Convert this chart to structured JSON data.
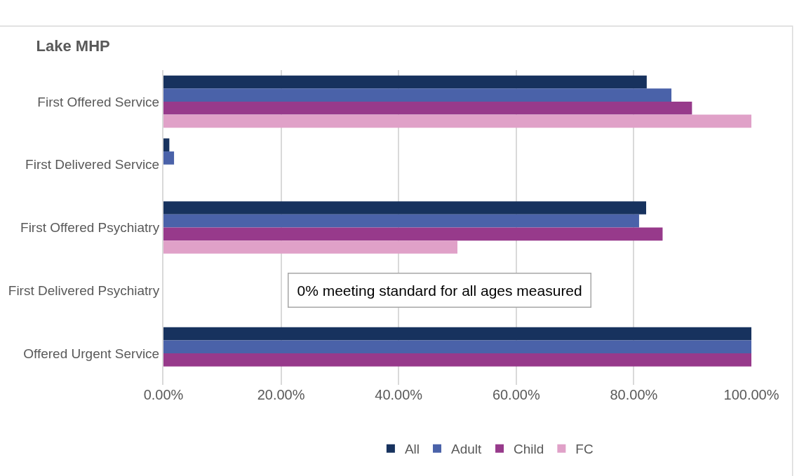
{
  "chart_data": {
    "type": "bar",
    "orientation": "horizontal",
    "title": "Lake MHP",
    "categories": [
      "First Offered Service",
      "First Delivered Service",
      "First Offered Psychiatry",
      "First Delivered Psychiatry",
      "Offered Urgent Service"
    ],
    "series": [
      {
        "name": "All",
        "color": "#17325e",
        "values": [
          82.2,
          1.0,
          82.1,
          0,
          100
        ]
      },
      {
        "name": "Adult",
        "color": "#4a62a9",
        "values": [
          86.4,
          1.8,
          80.9,
          0,
          100
        ]
      },
      {
        "name": "Child",
        "color": "#973a8b",
        "values": [
          89.9,
          null,
          84.9,
          0,
          100
        ]
      },
      {
        "name": "FC",
        "color": "#e0a1c8",
        "values": [
          100,
          null,
          50.0,
          0,
          null
        ]
      }
    ],
    "xlim": [
      0,
      100
    ],
    "xticks": [
      {
        "value": 0,
        "label": "0.00%"
      },
      {
        "value": 20,
        "label": "20.00%"
      },
      {
        "value": 40,
        "label": "40.00%"
      },
      {
        "value": 60,
        "label": "60.00%"
      },
      {
        "value": 80,
        "label": "80.00%"
      },
      {
        "value": 100,
        "label": "100.00%"
      }
    ],
    "grid": "x",
    "legend": "bottom",
    "annotations": [
      "0% meeting standard for all ages measured"
    ]
  }
}
